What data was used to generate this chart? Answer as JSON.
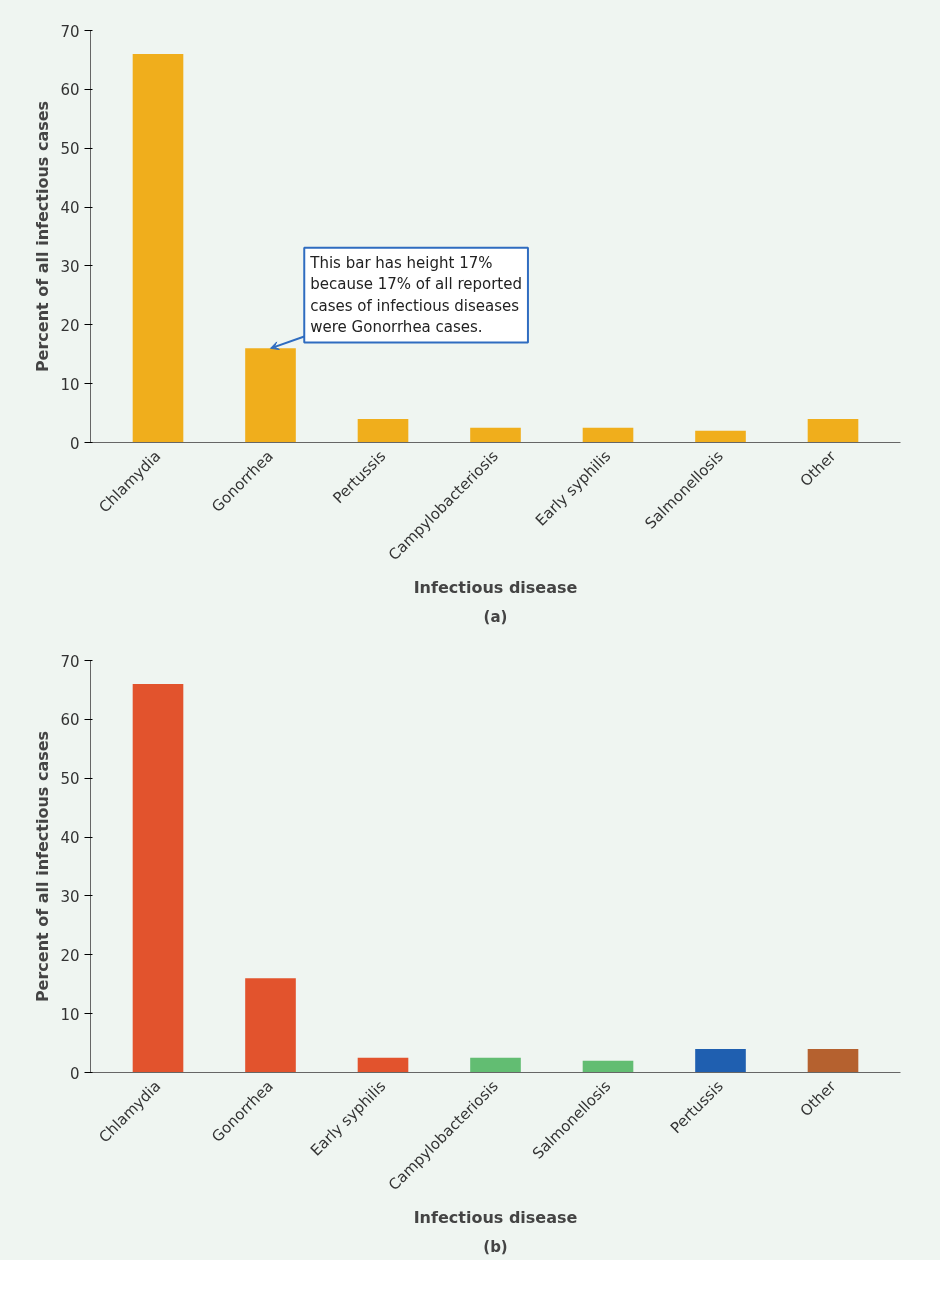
{
  "chart_data": [
    {
      "type": "bar",
      "xlabel": "Infectious disease",
      "ylabel": "Percent of all infectious cases",
      "categories": [
        "Chlamydia",
        "Gonorrhea",
        "Pertussis",
        "Campylobacteriosis",
        "Early syphilis",
        "Salmonellosis",
        "Other"
      ],
      "values": [
        66,
        16,
        4,
        2.5,
        2.5,
        2,
        4
      ],
      "color": "#f0ae1c",
      "ylim": [
        0,
        70
      ],
      "yticks": [
        0,
        10,
        20,
        30,
        40,
        50,
        60,
        70
      ],
      "grid": false,
      "annotations": [
        {
          "text": "This bar has height 17%\nbecause 17% of all reported\ncases of infectious diseases\nwere Gonorrhea cases.",
          "x": "Gonorrhea",
          "y": 16
        },
        "(a)"
      ]
    },
    {
      "type": "bar",
      "xlabel": "Infectious disease",
      "ylabel": "Percent of all infectious cases",
      "categories": [
        "Chlamydia",
        "Gonorrhea",
        "Early syphilis",
        "Campylobacteriosis",
        "Salmonellosis",
        "Pertussis",
        "Other"
      ],
      "values": [
        66,
        16,
        2.5,
        2.5,
        2,
        4,
        4
      ],
      "colors": [
        "#e2532d",
        "#e2532d",
        "#e2532d",
        "#62bd72",
        "#62bd72",
        "#1f5fb0",
        "#b5612f"
      ],
      "ylim": [
        0,
        70
      ],
      "yticks": [
        0,
        10,
        20,
        30,
        40,
        50,
        60,
        70
      ],
      "grid": false,
      "annotations": [
        "(b)"
      ]
    }
  ]
}
